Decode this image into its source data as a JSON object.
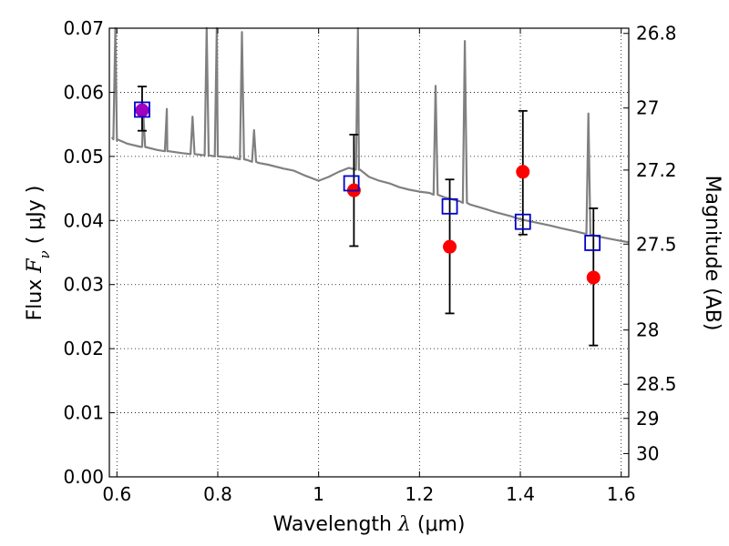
{
  "chart_data": {
    "type": "scatter",
    "title": "",
    "xlabel": {
      "prefix": "Wavelength  ",
      "symbol": "λ",
      "units": " (μm)"
    },
    "ylabel": {
      "prefix": "Flux  ",
      "symbol": "F",
      "subscript": "ν",
      "units": "  ( μJy )"
    },
    "y2label": "Magnitude (AB)",
    "xlim": [
      0.585,
      1.615
    ],
    "ylim": [
      0.0,
      0.07
    ],
    "x_ticks": [
      0.6,
      0.8,
      1.0,
      1.2,
      1.4,
      1.6
    ],
    "x_tick_labels": [
      "0.6",
      "0.8",
      "1",
      "1.2",
      "1.4",
      "1.6"
    ],
    "y_ticks": [
      0.0,
      0.01,
      0.02,
      0.03,
      0.04,
      0.05,
      0.06,
      0.07
    ],
    "y_tick_labels": [
      "0.00",
      "0.01",
      "0.02",
      "0.03",
      "0.04",
      "0.05",
      "0.06",
      "0.07"
    ],
    "y2_ticks": [
      26.8,
      27,
      27.2,
      27.5,
      28,
      28.5,
      29,
      30
    ],
    "y2_tick_labels": [
      "26.8",
      "27",
      "27.2",
      "27.5",
      "28",
      "28.5",
      "29",
      "30"
    ],
    "grid": true,
    "colors": {
      "observed": "#ff0000",
      "model_boxes": "#0000cc",
      "first_point": "#a000c0",
      "sed": "#808080",
      "errorbar": "#000000"
    },
    "observed": {
      "x": [
        0.65,
        1.07,
        1.26,
        1.405,
        1.545
      ],
      "y": [
        0.0572,
        0.0447,
        0.0359,
        0.0476,
        0.0311
      ],
      "yerr_low": [
        0.0032,
        0.0087,
        0.0104,
        0.0098,
        0.0106
      ],
      "yerr_high": [
        0.0037,
        0.0087,
        0.0105,
        0.0095,
        0.0108
      ]
    },
    "model_photometry": {
      "x": [
        0.65,
        1.065,
        1.26,
        1.405,
        1.543
      ],
      "y": [
        0.0573,
        0.0458,
        0.0422,
        0.0398,
        0.0365
      ]
    },
    "sed": {
      "continuum": [
        [
          0.59,
          0.053
        ],
        [
          0.6,
          0.0525
        ],
        [
          0.62,
          0.052
        ],
        [
          0.65,
          0.0515
        ],
        [
          0.68,
          0.051
        ],
        [
          0.7,
          0.0508
        ],
        [
          0.73,
          0.0505
        ],
        [
          0.76,
          0.0503
        ],
        [
          0.8,
          0.05
        ],
        [
          0.83,
          0.0498
        ],
        [
          0.86,
          0.0494
        ],
        [
          0.88,
          0.049
        ],
        [
          0.9,
          0.0487
        ],
        [
          0.93,
          0.0481
        ],
        [
          0.95,
          0.0478
        ],
        [
          0.97,
          0.0471
        ],
        [
          0.99,
          0.0465
        ],
        [
          1.0,
          0.0462
        ],
        [
          1.02,
          0.0468
        ],
        [
          1.04,
          0.0476
        ],
        [
          1.06,
          0.0482
        ],
        [
          1.08,
          0.0479
        ],
        [
          1.1,
          0.0468
        ],
        [
          1.12,
          0.0462
        ],
        [
          1.14,
          0.0458
        ],
        [
          1.16,
          0.0452
        ],
        [
          1.18,
          0.0448
        ],
        [
          1.2,
          0.0445
        ],
        [
          1.22,
          0.0443
        ],
        [
          1.25,
          0.0436
        ],
        [
          1.28,
          0.043
        ],
        [
          1.3,
          0.0425
        ],
        [
          1.33,
          0.0418
        ],
        [
          1.35,
          0.0413
        ],
        [
          1.38,
          0.0407
        ],
        [
          1.4,
          0.0402
        ],
        [
          1.43,
          0.0397
        ],
        [
          1.46,
          0.0392
        ],
        [
          1.48,
          0.0388
        ],
        [
          1.51,
          0.0383
        ],
        [
          1.53,
          0.0379
        ],
        [
          1.56,
          0.0374
        ],
        [
          1.58,
          0.0371
        ],
        [
          1.6,
          0.0368
        ],
        [
          1.615,
          0.0366
        ]
      ],
      "lines": [
        [
          0.597,
          0.0705
        ],
        [
          0.652,
          0.0571
        ],
        [
          0.699,
          0.0574
        ],
        [
          0.75,
          0.0562
        ],
        [
          0.778,
          0.071
        ],
        [
          0.798,
          0.071
        ],
        [
          0.848,
          0.0694
        ],
        [
          0.872,
          0.0541
        ],
        [
          1.078,
          0.071
        ],
        [
          1.232,
          0.061
        ],
        [
          1.29,
          0.068
        ],
        [
          1.535,
          0.0567
        ]
      ]
    }
  }
}
